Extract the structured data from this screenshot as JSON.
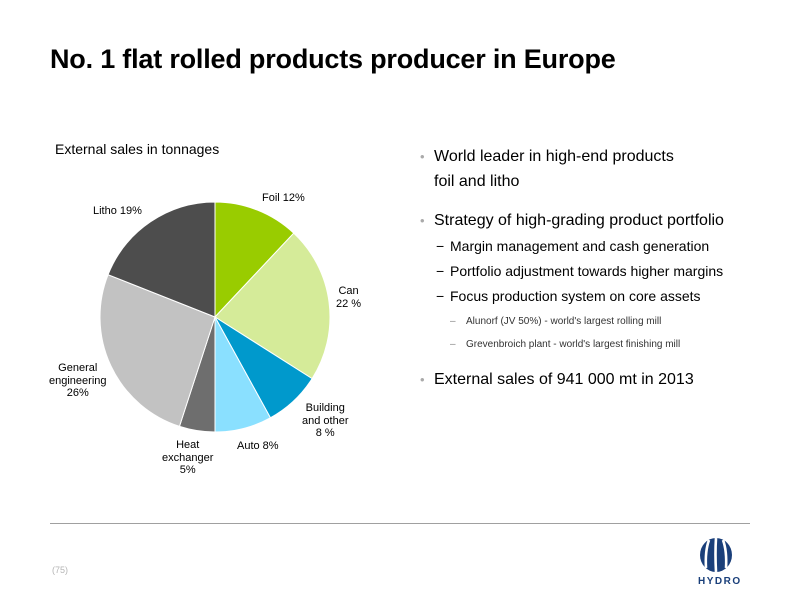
{
  "slide": {
    "title": "No. 1 flat rolled products producer in Europe",
    "page_number": "(75)"
  },
  "chart_data": {
    "type": "pie",
    "title": "External sales in tonnages",
    "slices": [
      {
        "name": "Foil",
        "value": 12,
        "color": "#99cc00",
        "label_lines": [
          "Foil 12%"
        ]
      },
      {
        "name": "Can",
        "value": 22,
        "color": "#d5eb99",
        "label_lines": [
          "Can",
          "22 %"
        ]
      },
      {
        "name": "Building and other",
        "value": 8,
        "color": "#0099cc",
        "label_lines": [
          "Building",
          "and other",
          "8 %"
        ]
      },
      {
        "name": "Auto",
        "value": 8,
        "color": "#8ae0ff",
        "label_lines": [
          "Auto 8%"
        ]
      },
      {
        "name": "Heat exchanger",
        "value": 5,
        "color": "#6e6e6e",
        "label_lines": [
          "Heat",
          "exchanger",
          "5%"
        ]
      },
      {
        "name": "General engineering",
        "value": 26,
        "color": "#c2c2c2",
        "label_lines": [
          "General",
          "engineering",
          "26%"
        ]
      },
      {
        "name": "Litho",
        "value": 19,
        "color": "#4d4d4d",
        "label_lines": [
          "Litho 19%"
        ]
      }
    ]
  },
  "bullets": [
    {
      "lines": [
        "World leader in high-end products",
        "foil and litho"
      ]
    },
    {
      "lines": [
        "Strategy of high-grading product portfolio"
      ],
      "sub": [
        "Margin management and cash generation",
        "Portfolio adjustment towards higher margins",
        "Focus production system on core assets"
      ],
      "subsub": [
        "Alunorf (JV 50%) - world's largest rolling mill",
        "Grevenbroich plant - world's largest finishing mill"
      ]
    },
    {
      "lines": [
        "External sales of 941 000 mt in 2013"
      ]
    }
  ],
  "logo": {
    "text": "HYDRO",
    "color": "#1a3f7a"
  }
}
